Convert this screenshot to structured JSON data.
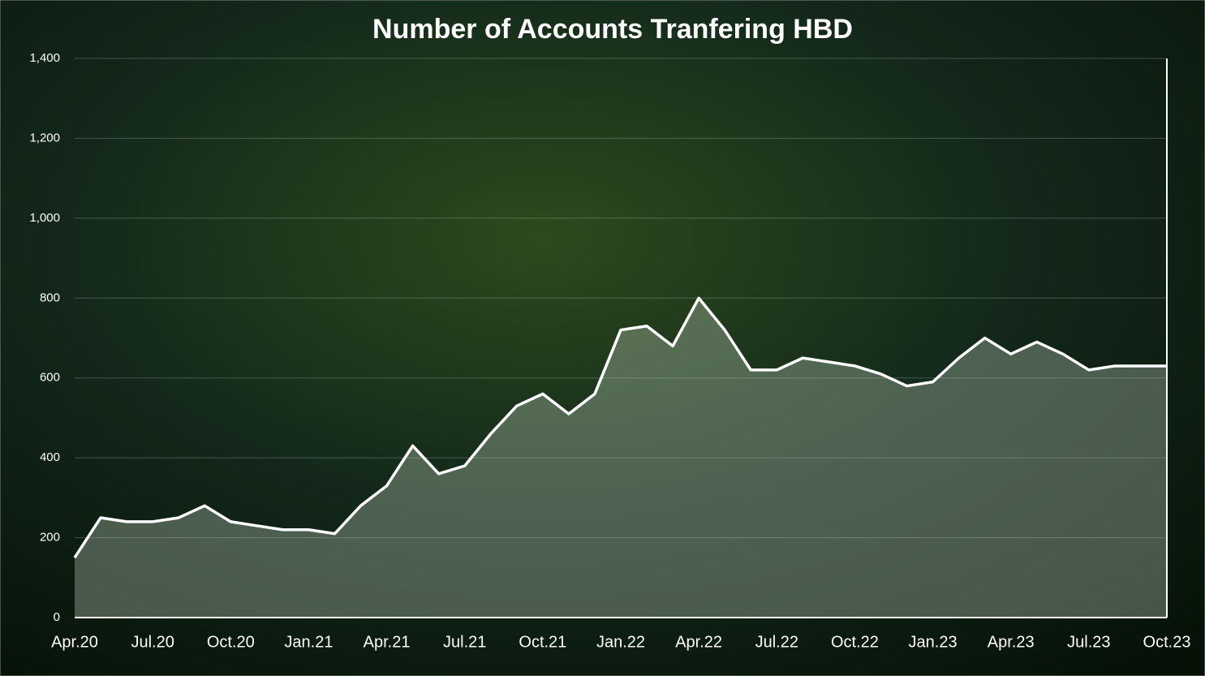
{
  "chart_data": {
    "type": "line",
    "title": "Number of Accounts Tranfering HBD",
    "categories": [
      "Apr.20",
      null,
      null,
      "Jul.20",
      null,
      null,
      "Oct.20",
      null,
      null,
      "Jan.21",
      null,
      null,
      "Apr.21",
      null,
      null,
      "Jul.21",
      null,
      null,
      "Oct.21",
      null,
      null,
      "Jan.22",
      null,
      null,
      "Apr.22",
      null,
      null,
      "Jul.22",
      null,
      null,
      "Oct.22",
      null,
      null,
      "Jan.23",
      null,
      null,
      "Apr.23",
      null,
      null,
      "Jul.23",
      null,
      null,
      "Oct.23"
    ],
    "values": [
      150,
      250,
      240,
      240,
      250,
      280,
      240,
      230,
      220,
      220,
      210,
      280,
      330,
      430,
      360,
      380,
      460,
      530,
      560,
      510,
      560,
      720,
      730,
      680,
      800,
      720,
      620,
      620,
      650,
      640,
      630,
      610,
      580,
      590,
      650,
      700,
      660,
      690,
      660,
      620,
      630,
      630,
      630
    ],
    "color": "#ffffff",
    "ylim": [
      0,
      1400
    ],
    "yticks": [
      0,
      200,
      400,
      600,
      800,
      {
        "value": 1000,
        "label": "1,000"
      },
      {
        "value": 1200,
        "label": "1,200"
      },
      {
        "value": 1400,
        "label": "1,400"
      }
    ],
    "grid": true
  }
}
